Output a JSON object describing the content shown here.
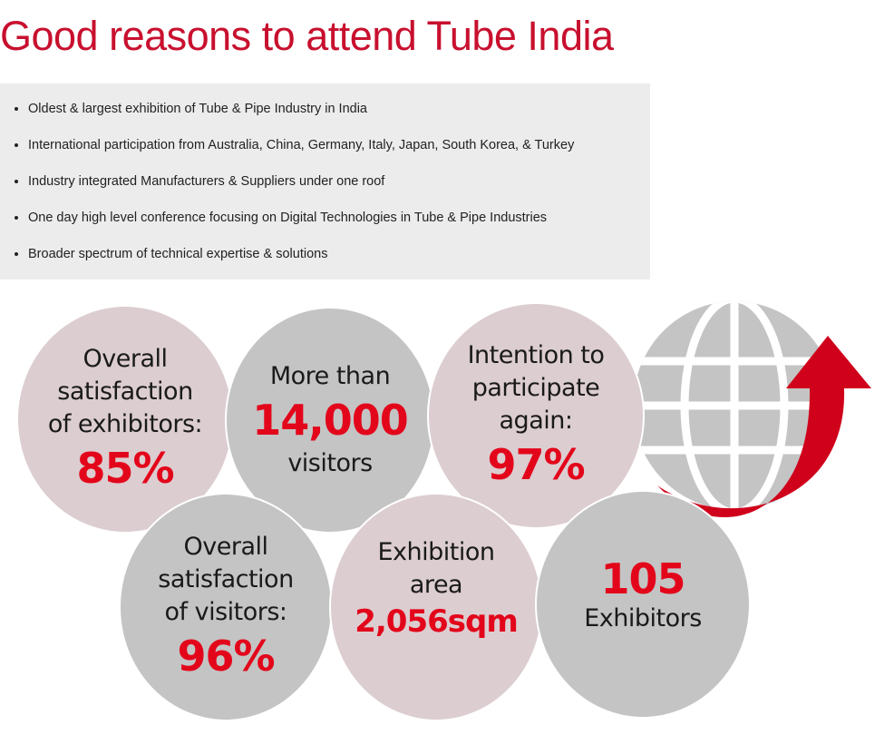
{
  "title": "Good reasons to attend Tube India",
  "reasons": [
    "Oldest & largest exhibition of Tube & Pipe Industry in India",
    "International participation from Australia, China, Germany, Italy, Japan, South Korea, & Turkey",
    "Industry integrated Manufacturers & Suppliers under one roof",
    "One day high level conference focusing on Digital Technologies in Tube & Pipe Industries",
    "Broader spectrum of technical expertise & solutions"
  ],
  "stats": {
    "exhibitor_satisfaction": {
      "l1": "Overall",
      "l2": "satisfaction",
      "l3": "of exhibitors:",
      "value": "85%"
    },
    "visitors": {
      "l1": "More than",
      "value": "14,000",
      "l2": "visitors"
    },
    "participate_again": {
      "l1": "Intention to",
      "l2": "participate",
      "l3": "again:",
      "value": "97%"
    },
    "visitor_satisfaction": {
      "l1": "Overall",
      "l2": "satisfaction",
      "l3": "of visitors:",
      "value": "96%"
    },
    "area": {
      "l1": "Exhibition",
      "l2": "area",
      "value": "2,056sqm"
    },
    "exhibitors": {
      "value": "105",
      "l1": "Exhibitors"
    }
  },
  "colors": {
    "accent": "#e3061b",
    "title": "#c8102e",
    "pink": "#dccdd0",
    "gray": "#c4c4c4"
  }
}
